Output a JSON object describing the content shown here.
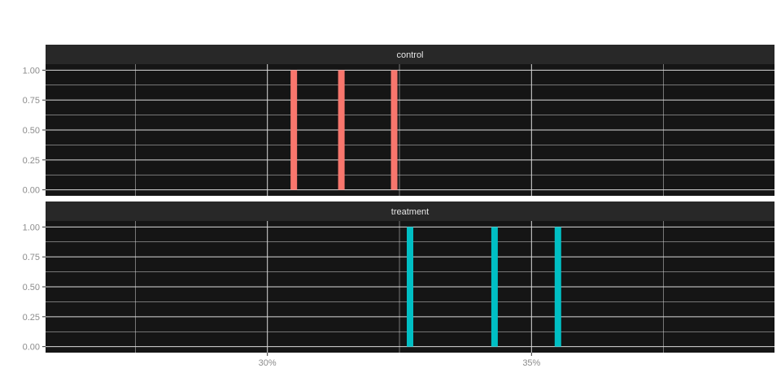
{
  "chart_data": {
    "type": "bar",
    "facet_layout": "rows",
    "colors": {
      "panel_bg": "#151515",
      "strip_bg": "#282828",
      "grid": "#dadada",
      "control": "#f8766d",
      "treatment": "#00bfc4"
    },
    "x_ticks": [
      {
        "value": 30,
        "label": "30%"
      },
      {
        "value": 35,
        "label": "35%"
      }
    ],
    "x_minor_ticks": [
      27.5,
      32.5,
      37.5
    ],
    "xlim": [
      25.8,
      39.6
    ],
    "y_ticks": [
      {
        "value": 0,
        "label": "0.00"
      },
      {
        "value": 0.25,
        "label": "0.25"
      },
      {
        "value": 0.5,
        "label": "0.50"
      },
      {
        "value": 0.75,
        "label": "0.75"
      },
      {
        "value": 1.0,
        "label": "1.00"
      }
    ],
    "ylim": [
      -0.05,
      1.05
    ],
    "grid": true,
    "legend": "none",
    "facets": [
      {
        "name": "control",
        "color_key": "control",
        "x": [
          30.5,
          31.4,
          32.4
        ],
        "values": [
          1,
          1,
          1
        ]
      },
      {
        "name": "treatment",
        "color_key": "treatment",
        "x": [
          32.7,
          34.3,
          35.5
        ],
        "values": [
          1,
          1,
          1
        ]
      }
    ]
  }
}
